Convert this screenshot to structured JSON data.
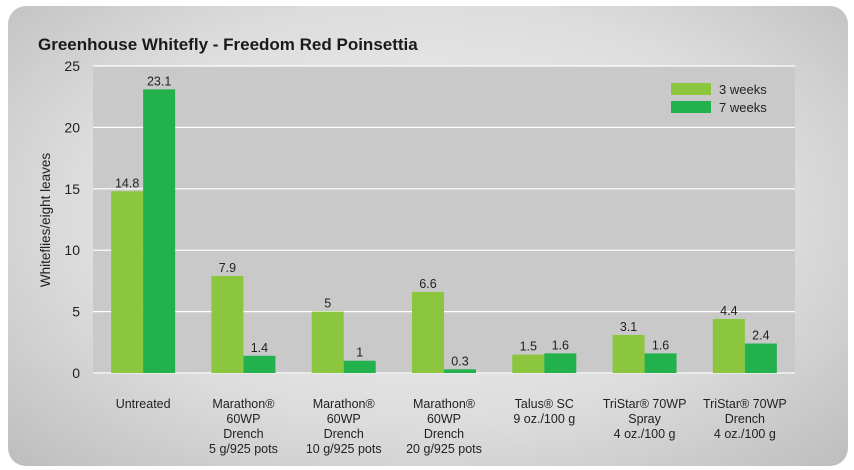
{
  "chart_data": {
    "type": "bar",
    "title": "Greenhouse Whitefly - Freedom Red Poinsettia",
    "xlabel": "",
    "ylabel": "Whiteflies/eight leaves",
    "ylim": [
      0,
      25
    ],
    "yticks": [
      0,
      5,
      10,
      15,
      20,
      25
    ],
    "grid": true,
    "legend_position": "top-right",
    "categories": [
      [
        "Untreated"
      ],
      [
        "Marathon®",
        "60WP",
        "Drench",
        "5 g/925 pots"
      ],
      [
        "Marathon®",
        "60WP",
        "Drench",
        "10 g/925 pots"
      ],
      [
        "Marathon®",
        "60WP",
        "Drench",
        "20 g/925 pots"
      ],
      [
        "Talus® SC",
        "9 oz./100 g"
      ],
      [
        "TriStar® 70WP",
        "Spray",
        "4 oz./100 g"
      ],
      [
        "TriStar® 70WP",
        "Drench",
        "4 oz./100 g"
      ]
    ],
    "series": [
      {
        "name": "3 weeks",
        "color": "#8cc63f",
        "values": [
          14.8,
          7.9,
          5,
          6.6,
          1.5,
          3.1,
          4.4
        ]
      },
      {
        "name": "7 weeks",
        "color": "#22b14c",
        "values": [
          23.1,
          1.4,
          1,
          0.3,
          1.6,
          1.6,
          2.4
        ]
      }
    ]
  }
}
